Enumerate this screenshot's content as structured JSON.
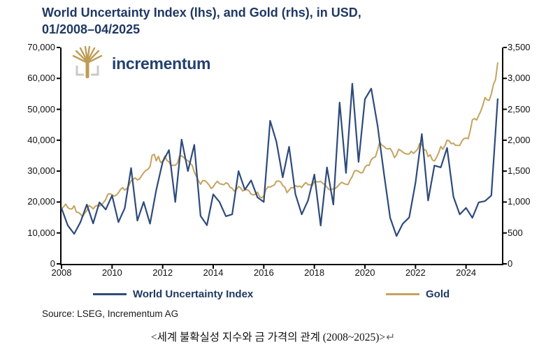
{
  "title": {
    "line1": "World Uncertainty Index (lhs), and Gold (rhs), in USD,",
    "line2": "01/2008–04/2025"
  },
  "logo": {
    "text": "incrementum"
  },
  "colors": {
    "title_navy": "#1F3864",
    "wui_line": "#2E4A7C",
    "gold_line": "#C5A35E",
    "axis": "#000000",
    "logo_gold": "#BF9B55",
    "logo_gray": "#C9C9C9"
  },
  "source": "Source: LSEG, Incrementum AG",
  "caption": {
    "text": "<세계 불확실성 지수와 금 가격의 관계 (2008~2025)>",
    "return_mark": "↵"
  },
  "chart_data": {
    "type": "line",
    "title": "World Uncertainty Index (lhs), and Gold (rhs), in USD, 01/2008-04/2025",
    "grid": false,
    "legend_position": "bottom",
    "x_axis": {
      "min": 2008.0,
      "max": 2025.42,
      "tick_years": [
        2008,
        2010,
        2012,
        2014,
        2016,
        2018,
        2020,
        2022,
        2024
      ],
      "tick_labels": [
        "2008",
        "2010",
        "2012",
        "2014",
        "2016",
        "2018",
        "2020",
        "2022",
        "2024"
      ]
    },
    "y_left": {
      "min": 0,
      "max": 70000,
      "step": 10000,
      "tick_labels": [
        "0",
        "10,000",
        "20,000",
        "30,000",
        "40,000",
        "50,000",
        "60,000",
        "70,000"
      ]
    },
    "y_right": {
      "min": 0,
      "max": 3500,
      "step": 500,
      "tick_labels": [
        "0",
        "500",
        "1,000",
        "1,500",
        "2,000",
        "2,500",
        "3,000",
        "3,500"
      ]
    },
    "series": [
      {
        "name": "Gold",
        "axis": "right",
        "color": "#C5A35E",
        "x_start": 2008.0,
        "x_step_years": 0.0833333,
        "frequency": "monthly",
        "values": [
          890,
          922,
          968,
          910,
          889,
          889,
          940,
          839,
          830,
          807,
          761,
          820,
          859,
          943,
          924,
          890,
          929,
          946,
          934,
          949,
          997,
          1043,
          1127,
          1135,
          1118,
          1095,
          1113,
          1149,
          1205,
          1233,
          1193,
          1216,
          1271,
          1342,
          1370,
          1391,
          1356,
          1373,
          1424,
          1474,
          1511,
          1529,
          1573,
          1756,
          1772,
          1666,
          1739,
          1640,
          1656,
          1743,
          1674,
          1650,
          1586,
          1597,
          1594,
          1627,
          1745,
          1747,
          1722,
          1685,
          1671,
          1628,
          1593,
          1487,
          1414,
          1343,
          1287,
          1347,
          1348,
          1316,
          1276,
          1221,
          1244,
          1301,
          1336,
          1298,
          1288,
          1279,
          1311,
          1296,
          1238,
          1222,
          1176,
          1200,
          1251,
          1227,
          1178,
          1198,
          1199,
          1181,
          1128,
          1117,
          1125,
          1159,
          1086,
          1068,
          1098,
          1200,
          1246,
          1242,
          1260,
          1276,
          1337,
          1340,
          1327,
          1267,
          1238,
          1152,
          1192,
          1234,
          1231,
          1266,
          1246,
          1260,
          1236,
          1283,
          1315,
          1280,
          1282,
          1264,
          1331,
          1330,
          1325,
          1335,
          1303,
          1281,
          1238,
          1201,
          1198,
          1215,
          1221,
          1250,
          1292,
          1320,
          1301,
          1286,
          1284,
          1359,
          1413,
          1500,
          1511,
          1495,
          1471,
          1479,
          1561,
          1597,
          1592,
          1683,
          1716,
          1732,
          1843,
          1969,
          1922,
          1900,
          1866,
          1858,
          1867,
          1808,
          1718,
          1762,
          1853,
          1835,
          1807,
          1784,
          1777,
          1777,
          1820,
          1787,
          1817,
          1856,
          1948,
          1937,
          1848,
          1837,
          1736,
          1765,
          1681,
          1664,
          1725,
          1797,
          1898,
          1855,
          1913,
          2000,
          1992,
          1943,
          1951,
          1918,
          1916,
          1915,
          1984,
          2026,
          2034,
          2025,
          2160,
          2330,
          2351,
          2327,
          2398,
          2470,
          2570,
          2690,
          2652,
          2644,
          2750,
          2900,
          2980,
          3250
        ]
      },
      {
        "name": "World Uncertainty Index",
        "axis": "left",
        "color": "#2E4A7C",
        "x_start": 2008.0,
        "x_step_years": 0.25,
        "frequency": "quarterly",
        "values": [
          18000,
          12400,
          9700,
          13500,
          19200,
          13100,
          19900,
          17600,
          22100,
          13500,
          18000,
          31000,
          14000,
          20000,
          13000,
          24000,
          33000,
          36800,
          20000,
          40200,
          30000,
          38500,
          15500,
          12500,
          22500,
          20000,
          15400,
          16000,
          30000,
          24000,
          27000,
          21500,
          20000,
          46300,
          39500,
          28000,
          37900,
          22600,
          16000,
          20500,
          28900,
          12400,
          31200,
          19200,
          52200,
          29400,
          58300,
          33000,
          53300,
          56700,
          44700,
          29400,
          14900,
          9000,
          13000,
          15000,
          26200,
          42000,
          20500,
          31800,
          31200,
          37500,
          21700,
          16000,
          18100,
          14900,
          19900,
          20300,
          22100,
          53300
        ]
      }
    ]
  },
  "legend": {
    "items": [
      {
        "label": "World Uncertainty Index",
        "color": "#2E4A7C"
      },
      {
        "label": "Gold",
        "color": "#C5A35E"
      }
    ]
  }
}
